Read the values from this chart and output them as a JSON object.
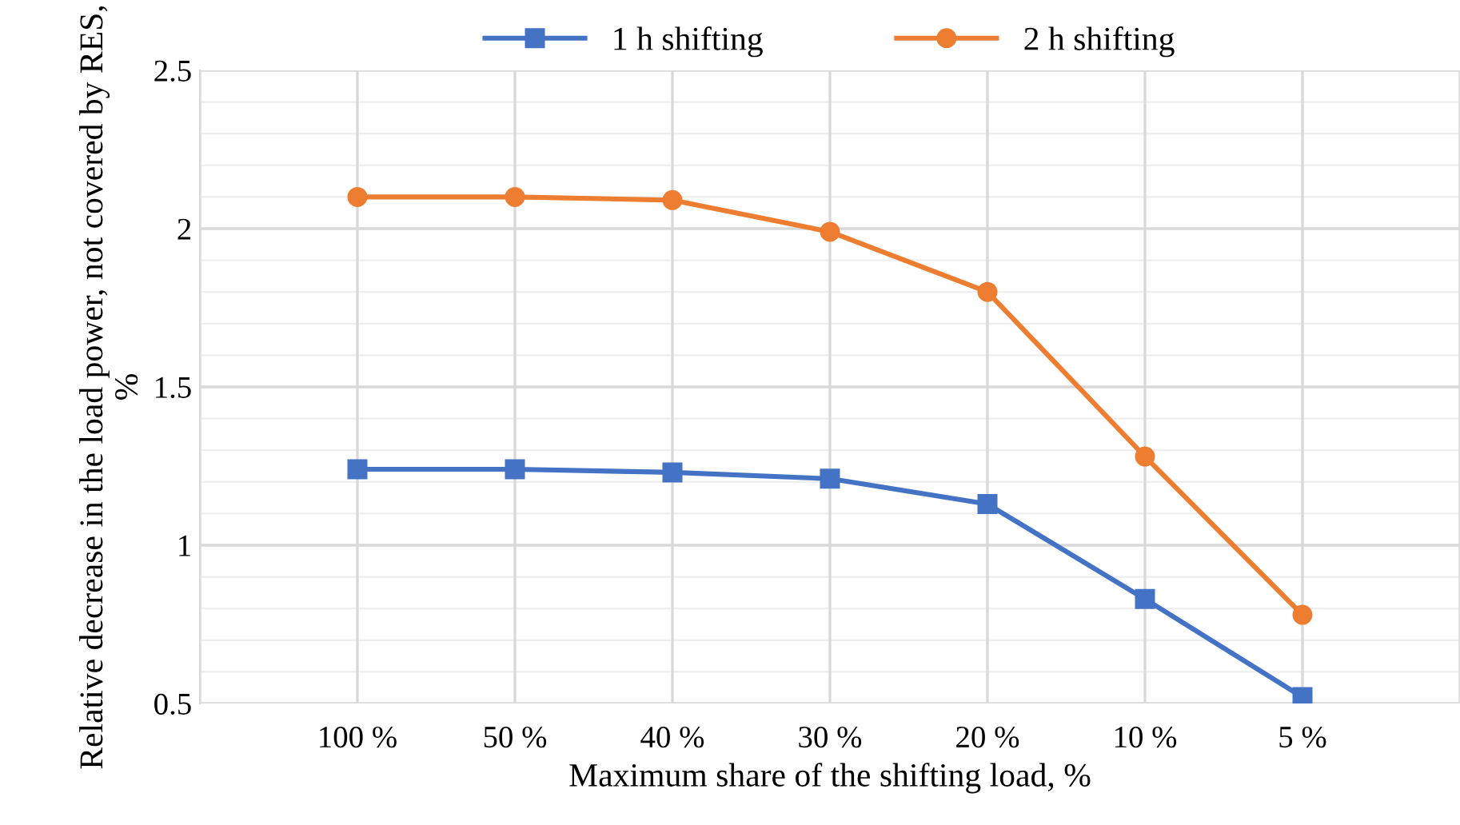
{
  "chart_data": {
    "type": "line",
    "xlabel": "Maximum share of the shifting load, %",
    "ylabel": "Relative decrease in the load power, not covered by RES, %",
    "categories": [
      null,
      "100 %",
      "50 %",
      "40 %",
      "30 %",
      "20 %",
      "10 %",
      "5 %",
      null
    ],
    "series": [
      {
        "name": "1 h shifting",
        "color": "#4472c4",
        "marker": "square",
        "values": [
          null,
          1.24,
          1.24,
          1.23,
          1.21,
          1.13,
          0.83,
          0.52,
          null
        ]
      },
      {
        "name": "2 h shifting",
        "color": "#ed7d31",
        "marker": "circle",
        "values": [
          null,
          2.1,
          2.1,
          2.09,
          1.99,
          1.8,
          1.28,
          0.78,
          null
        ]
      }
    ],
    "ylim": [
      0.5,
      2.5
    ],
    "yticks": [
      0.5,
      1,
      1.5,
      2,
      2.5
    ],
    "grid": true,
    "legend": "top",
    "line_style": "solid"
  }
}
